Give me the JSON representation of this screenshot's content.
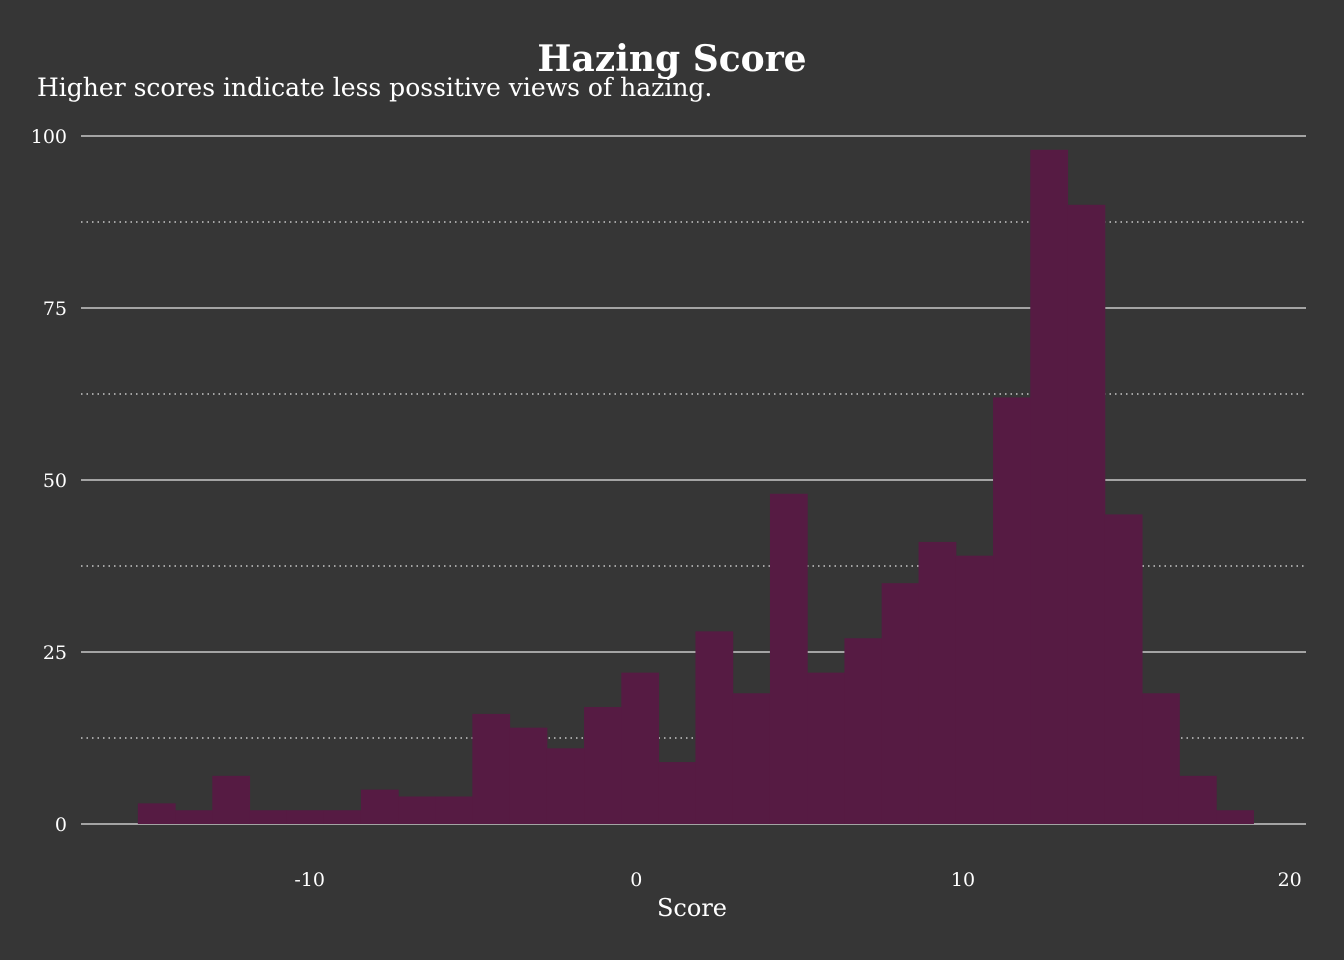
{
  "chart_data": {
    "type": "bar",
    "subtype": "histogram",
    "title": "Hazing Score",
    "subtitle": "Higher scores indicate less possitive views of hazing.",
    "xlabel": "Score",
    "ylabel": "",
    "xlim": [
      -17.0,
      20.5
    ],
    "ylim": [
      0,
      100
    ],
    "x_ticks": [
      -10,
      0,
      10,
      20
    ],
    "y_ticks": [
      0,
      25,
      50,
      75,
      100
    ],
    "y_minor_ticks": [
      12.5,
      37.5,
      62.5,
      87.5
    ],
    "grid": {
      "major": "solid",
      "minor": "dotted",
      "vertical": false
    },
    "bin_width": 1.1379,
    "bins": [
      {
        "x0": -15.26,
        "count": 3
      },
      {
        "x0": -14.12,
        "count": 2
      },
      {
        "x0": -12.98,
        "count": 7
      },
      {
        "x0": -11.85,
        "count": 2
      },
      {
        "x0": -10.71,
        "count": 2
      },
      {
        "x0": -9.57,
        "count": 2
      },
      {
        "x0": -8.43,
        "count": 5
      },
      {
        "x0": -7.29,
        "count": 4
      },
      {
        "x0": -6.15,
        "count": 4
      },
      {
        "x0": -5.02,
        "count": 16
      },
      {
        "x0": -3.88,
        "count": 14
      },
      {
        "x0": -2.74,
        "count": 11
      },
      {
        "x0": -1.6,
        "count": 17
      },
      {
        "x0": -0.46,
        "count": 22
      },
      {
        "x0": 0.68,
        "count": 9
      },
      {
        "x0": 1.81,
        "count": 28
      },
      {
        "x0": 2.95,
        "count": 19
      },
      {
        "x0": 4.09,
        "count": 48
      },
      {
        "x0": 5.23,
        "count": 22
      },
      {
        "x0": 6.37,
        "count": 27
      },
      {
        "x0": 7.51,
        "count": 35
      },
      {
        "x0": 8.64,
        "count": 41
      },
      {
        "x0": 9.78,
        "count": 39
      },
      {
        "x0": 10.92,
        "count": 62
      },
      {
        "x0": 12.06,
        "count": 98
      },
      {
        "x0": 13.2,
        "count": 90
      },
      {
        "x0": 14.34,
        "count": 45
      },
      {
        "x0": 15.48,
        "count": 19
      },
      {
        "x0": 16.61,
        "count": 7
      },
      {
        "x0": 17.75,
        "count": 2
      }
    ],
    "colors": {
      "background": "#363636",
      "bar": "#561b43",
      "grid": "#c8c8c8",
      "text": "#ffffff"
    }
  }
}
